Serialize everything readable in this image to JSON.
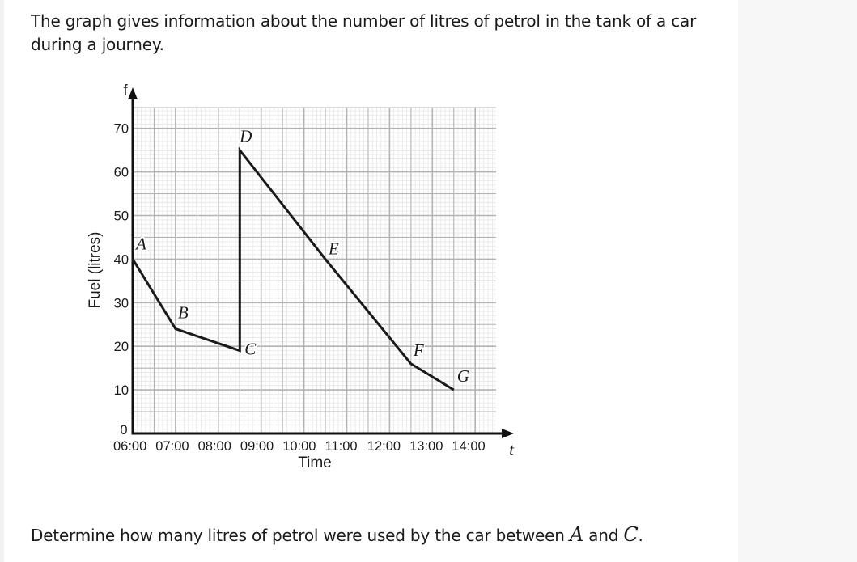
{
  "page": {
    "intro": "The graph gives information about the number of litres of petrol in the tank of a car during a journey.",
    "question": {
      "prefix": "Determine how many litres of petrol were used by the car between ",
      "var1": "A",
      "middle": " and ",
      "var2": "C",
      "suffix": "."
    }
  },
  "chart_data": {
    "type": "line",
    "title": "",
    "xlabel": "Time",
    "ylabel": "Fuel (litres)",
    "x_axis_symbol": "t",
    "y_axis_symbol": "f",
    "x_ticks": [
      "06:00",
      "07:00",
      "08:00",
      "09:00",
      "10:00",
      "11:00",
      "12:00",
      "13:00",
      "14:00"
    ],
    "y_ticks": [
      0,
      10,
      20,
      30,
      40,
      50,
      60,
      70
    ],
    "xlim": [
      "06:00",
      "14:30"
    ],
    "ylim": [
      0,
      75
    ],
    "grid": true,
    "points": [
      {
        "label": "A",
        "x": "06:00",
        "hours": 0.0,
        "y": 40
      },
      {
        "label": "B",
        "x": "07:00",
        "hours": 1.0,
        "y": 24
      },
      {
        "label": "C",
        "x": "08:30",
        "hours": 2.5,
        "y": 19
      },
      {
        "label": "D",
        "x": "08:30",
        "hours": 2.5,
        "y": 65
      },
      {
        "label": "E",
        "x": "10:30",
        "hours": 4.5,
        "y": 40
      },
      {
        "label": "F",
        "x": "12:30",
        "hours": 6.5,
        "y": 16
      },
      {
        "label": "G",
        "x": "13:30",
        "hours": 7.5,
        "y": 10
      }
    ],
    "colors": {
      "line": "#1a1a1a",
      "major_grid": "#b3b3b3",
      "minor_grid": "#e6e6e6"
    }
  }
}
